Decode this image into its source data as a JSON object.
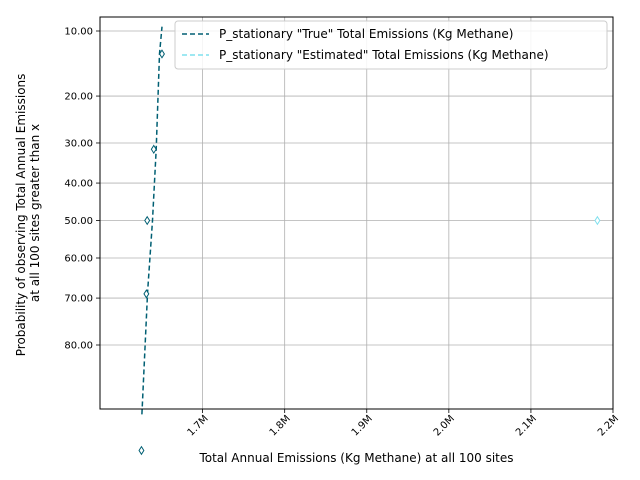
{
  "chart_data": {
    "type": "line",
    "xlabel": "Total Annual Emissions (Kg Methane) at all 100 sites",
    "ylabel_lines": [
      "Probability of observing Total Annual Emissions",
      "at all 100 sites greater than x"
    ],
    "x_ticks": [
      {
        "value": 1700000,
        "label": "1.7M"
      },
      {
        "value": 1800000,
        "label": "1.8M"
      },
      {
        "value": 1900000,
        "label": "1.9M"
      },
      {
        "value": 2000000,
        "label": "2.0M"
      },
      {
        "value": 2100000,
        "label": "2.1M"
      },
      {
        "value": 2200000,
        "label": "2.2M"
      }
    ],
    "y_ticks": [
      {
        "value": 10,
        "label": "10.00"
      },
      {
        "value": 20,
        "label": "20.00"
      },
      {
        "value": 30,
        "label": "30.00"
      },
      {
        "value": 40,
        "label": "40.00"
      },
      {
        "value": 50,
        "label": "50.00"
      },
      {
        "value": 60,
        "label": "60.00"
      },
      {
        "value": 70,
        "label": "70.00"
      },
      {
        "value": 80,
        "label": "80.00"
      }
    ],
    "y_scale": "probit (inverted, 10 at top)",
    "xlim": [
      1575000,
      2200000
    ],
    "grid": true,
    "legend_position": "top-right",
    "series": [
      {
        "name": "P_stationary \"True\" Total Emissions (Kg Methane)",
        "color": "#005f73",
        "style": "dashed",
        "line_x": [
          1626000,
          1633000,
          1639000,
          1643500,
          1647500,
          1650500
        ],
        "line_y": [
          90.5,
          68.5,
          50,
          31.5,
          13,
          9.5
        ],
        "markers": [
          {
            "x": 1625500,
            "y": 94
          },
          {
            "x": 1631500,
            "y": 69
          },
          {
            "x": 1632500,
            "y": 50
          },
          {
            "x": 1640500,
            "y": 31.5
          },
          {
            "x": 1650500,
            "y": 13
          }
        ]
      },
      {
        "name": "P_stationary \"Estimated\" Total Emissions (Kg Methane)",
        "color": "#7fe0ee",
        "style": "dashed",
        "line_x": [],
        "line_y": [],
        "markers": [
          {
            "x": 2181000,
            "y": 50
          }
        ]
      }
    ]
  }
}
